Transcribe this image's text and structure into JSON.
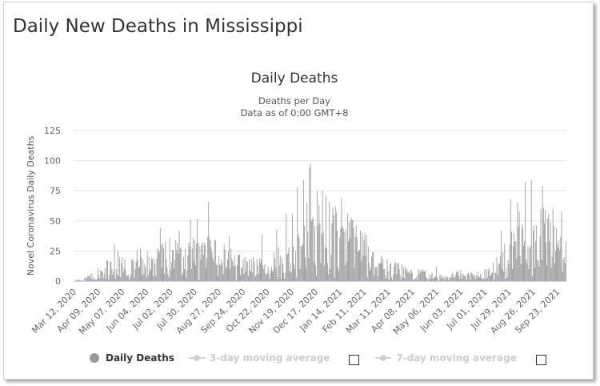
{
  "page": {
    "title": "Daily New Deaths in Mississippi"
  },
  "legend": {
    "daily": "Daily Deaths",
    "ma3": "3-day moving average",
    "ma7": "7-day moving average"
  },
  "colors": {
    "bars": "#999999",
    "grid": "#e6e6e6",
    "text": "#333333"
  },
  "chart_data": {
    "type": "bar",
    "title": "Daily Deaths",
    "subtitle_lines": [
      "Deaths per Day",
      "Data as of 0:00 GMT+8"
    ],
    "xlabel": "",
    "ylabel": "Novel Coronavirus Daily Deaths",
    "ylim": [
      0,
      125
    ],
    "yticks": [
      0,
      25,
      50,
      75,
      100,
      125
    ],
    "grid": true,
    "xticks": [
      "Mar 12, 2020",
      "Apr 09, 2020",
      "May 07, 2020",
      "Jun 04, 2020",
      "Jul 02, 2020",
      "Jul 30, 2020",
      "Aug 27, 2020",
      "Sep 24, 2020",
      "Oct 22, 2020",
      "Nov 19, 2020",
      "Dec 17, 2020",
      "Jan 14, 2021",
      "Feb 11, 2021",
      "Mar 11, 2021",
      "Apr 08, 2021",
      "May 06, 2021",
      "Jun 03, 2021",
      "Jul 01, 2021",
      "Jul 29, 2021",
      "Aug 26, 2021",
      "Sep 23, 2021"
    ],
    "series": [
      {
        "name": "Daily Deaths",
        "start_date": "Mar 12, 2020",
        "end_date": "Oct 03, 2021",
        "anchors": [
          [
            0,
            0
          ],
          [
            15,
            2
          ],
          [
            30,
            8
          ],
          [
            50,
            15
          ],
          [
            70,
            16
          ],
          [
            90,
            14
          ],
          [
            110,
            22
          ],
          [
            130,
            25
          ],
          [
            150,
            22
          ],
          [
            170,
            18
          ],
          [
            190,
            15
          ],
          [
            210,
            12
          ],
          [
            230,
            14
          ],
          [
            250,
            20
          ],
          [
            270,
            28
          ],
          [
            280,
            35
          ],
          [
            290,
            40
          ],
          [
            300,
            42
          ],
          [
            310,
            40
          ],
          [
            320,
            35
          ],
          [
            330,
            28
          ],
          [
            340,
            22
          ],
          [
            350,
            15
          ],
          [
            370,
            10
          ],
          [
            390,
            7
          ],
          [
            410,
            5
          ],
          [
            430,
            4
          ],
          [
            450,
            5
          ],
          [
            470,
            5
          ],
          [
            480,
            7
          ],
          [
            490,
            12
          ],
          [
            500,
            22
          ],
          [
            510,
            30
          ],
          [
            520,
            35
          ],
          [
            530,
            40
          ],
          [
            540,
            42
          ],
          [
            550,
            35
          ],
          [
            560,
            30
          ],
          [
            570,
            20
          ]
        ],
        "spikes": [
          [
            47,
            31
          ],
          [
            77,
            27
          ],
          [
            100,
            44
          ],
          [
            122,
            42
          ],
          [
            135,
            51
          ],
          [
            143,
            52
          ],
          [
            156,
            66
          ],
          [
            180,
            37
          ],
          [
            218,
            39
          ],
          [
            235,
            43
          ],
          [
            246,
            56
          ],
          [
            253,
            56
          ],
          [
            259,
            78
          ],
          [
            266,
            84
          ],
          [
            270,
            65
          ],
          [
            273,
            94
          ],
          [
            274,
            97
          ],
          [
            282,
            75
          ],
          [
            288,
            75
          ],
          [
            292,
            71
          ],
          [
            300,
            61
          ],
          [
            309,
            44
          ],
          [
            330,
            25
          ],
          [
            345,
            20
          ],
          [
            375,
            15
          ],
          [
            420,
            12
          ],
          [
            495,
            42
          ],
          [
            506,
            68
          ],
          [
            514,
            65
          ],
          [
            523,
            82
          ],
          [
            530,
            84
          ],
          [
            543,
            79
          ],
          [
            555,
            60
          ],
          [
            565,
            58
          ]
        ]
      }
    ]
  }
}
